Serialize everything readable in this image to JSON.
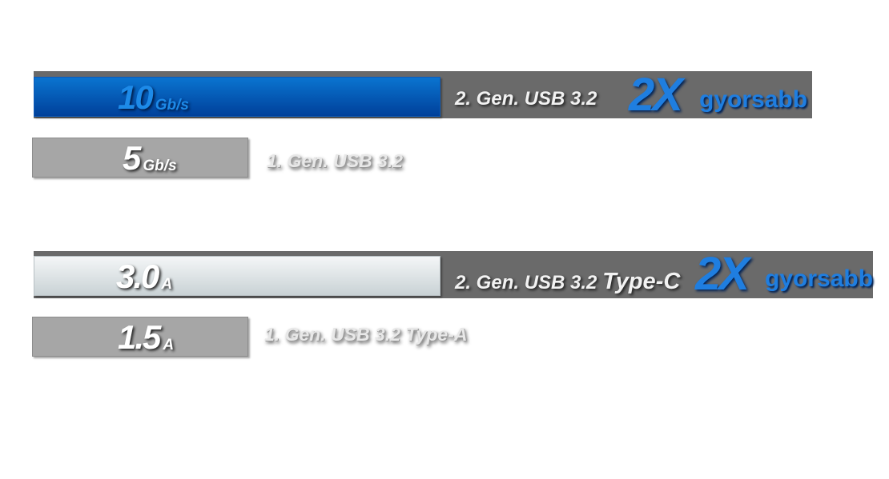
{
  "chart_data": [
    {
      "type": "bar",
      "orientation": "horizontal",
      "unit": "Gb/s",
      "bars": [
        {
          "value": 10,
          "value_label": "10",
          "unit_label": "Gb/s",
          "label": "2. Gen. USB 3.2",
          "badge": "2X",
          "badge_text": "gyorsabb",
          "color": "#0a5fc0"
        },
        {
          "value": 5,
          "value_label": "5",
          "unit_label": "Gb/s",
          "label": "1. Gen. USB 3.2",
          "color": "#a6a6a6"
        }
      ]
    },
    {
      "type": "bar",
      "orientation": "horizontal",
      "unit": "A",
      "bars": [
        {
          "value": 3.0,
          "value_label": "3.0",
          "unit_label": "A",
          "label": "2. Gen. USB 3.2",
          "label_suffix": "Type-C",
          "badge": "2X",
          "badge_text": "gyorsabb",
          "color": "#e4e9eb"
        },
        {
          "value": 1.5,
          "value_label": "1.5",
          "unit_label": "A",
          "label": "1. Gen. USB 3.2 Type-A",
          "color": "#a6a6a6"
        }
      ]
    }
  ]
}
